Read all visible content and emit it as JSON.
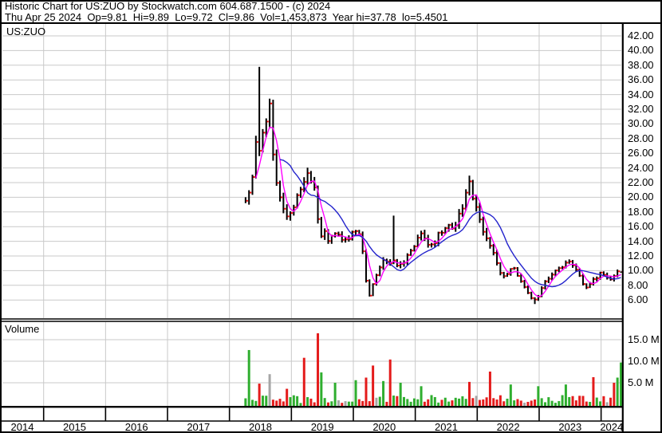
{
  "header": {
    "line1": "Historic Chart for US:ZUO by Stockwatch.com 604.687.1500 - (c) 2024",
    "line2": "Thu Apr 25 2024  Op=9.81  Hi=9.89  Lo=9.72  Cl=9.86  Vol=1,453,873  Year hi=37.78  lo=5.4501"
  },
  "price_pane": {
    "symbol_label": "US:ZUO"
  },
  "volume_pane": {
    "label": "Volume"
  },
  "chart_data": {
    "type": "candlestick",
    "title": "Historic Chart for US:ZUO",
    "symbol": "US:ZUO",
    "provider": "Stockwatch.com 604.687.1500 - (c) 2024",
    "last_quote": {
      "date": "Thu Apr 25 2024",
      "open": 9.81,
      "high": 9.89,
      "low": 9.72,
      "close": 9.86,
      "volume": "1,453,873",
      "year_high": 37.78,
      "year_low": 5.4501
    },
    "y_axis": {
      "min": 6,
      "max": 42,
      "step": 2,
      "labels": [
        "42.00",
        "40.00",
        "38.00",
        "36.00",
        "34.00",
        "32.00",
        "30.00",
        "28.00",
        "26.00",
        "24.00",
        "22.00",
        "20.00",
        "18.00",
        "16.00",
        "14.00",
        "12.00",
        "10.00",
        "8.00",
        "6.00"
      ]
    },
    "volume_axis": {
      "labels": [
        "15.0 M",
        "10.0 M",
        "5.0 M"
      ],
      "values": [
        15,
        10,
        5
      ],
      "unit": "millions of shares"
    },
    "x_axis": {
      "years": [
        "2014",
        "2015",
        "2016",
        "2017",
        "2018",
        "2019",
        "2020",
        "2021",
        "2022",
        "2023",
        "2024"
      ]
    },
    "grid": true,
    "colors": {
      "bar": "#000000",
      "close_tick": "#ff0000",
      "ma_short": "#ff00ff",
      "ma_long": "#2323cc",
      "vol_up": "#2fae2f",
      "vol_down": "#e41b1b",
      "vol_neutral": "#a6a6a6",
      "grid": "#c9c9c9",
      "frame": "#000000"
    },
    "moving_averages": [
      {
        "name": "short-ma",
        "period": 4,
        "color_key": "ma_short"
      },
      {
        "name": "long-ma",
        "period": 11,
        "color_key": "ma_long"
      }
    ],
    "bars": {
      "count": 110,
      "t_start": 2018.26,
      "t_end": 2024.32
    },
    "price_path_anchors": [
      [
        2018.28,
        19.5
      ],
      [
        2018.34,
        21.5
      ],
      [
        2018.41,
        24.0
      ],
      [
        2018.455,
        35.0
      ],
      [
        2018.48,
        26.5
      ],
      [
        2018.55,
        28.5
      ],
      [
        2018.61,
        30.5
      ],
      [
        2018.645,
        33.5
      ],
      [
        2018.7,
        25.5
      ],
      [
        2018.78,
        21.0
      ],
      [
        2018.85,
        18.5
      ],
      [
        2018.93,
        17.0
      ],
      [
        2019.0,
        17.8
      ],
      [
        2019.08,
        20.0
      ],
      [
        2019.18,
        22.0
      ],
      [
        2019.27,
        23.2
      ],
      [
        2019.35,
        21.5
      ],
      [
        2019.41,
        19.8
      ],
      [
        2019.44,
        14.6
      ],
      [
        2019.52,
        15.4
      ],
      [
        2019.6,
        13.9
      ],
      [
        2019.68,
        14.9
      ],
      [
        2019.76,
        15.2
      ],
      [
        2019.84,
        13.9
      ],
      [
        2019.92,
        14.2
      ],
      [
        2020.0,
        15.2
      ],
      [
        2020.1,
        15.0
      ],
      [
        2020.16,
        12.5
      ],
      [
        2020.22,
        7.2
      ],
      [
        2020.26,
        6.6
      ],
      [
        2020.33,
        8.4
      ],
      [
        2020.42,
        10.2
      ],
      [
        2020.5,
        11.8
      ],
      [
        2020.58,
        11.0
      ],
      [
        2020.64,
        10.2
      ],
      [
        2020.67,
        13.0
      ],
      [
        2020.71,
        10.4
      ],
      [
        2020.79,
        10.8
      ],
      [
        2020.87,
        12.0
      ],
      [
        2020.95,
        13.0
      ],
      [
        2021.03,
        14.4
      ],
      [
        2021.11,
        15.6
      ],
      [
        2021.19,
        13.9
      ],
      [
        2021.27,
        13.3
      ],
      [
        2021.36,
        14.7
      ],
      [
        2021.45,
        15.6
      ],
      [
        2021.54,
        16.1
      ],
      [
        2021.62,
        16.0
      ],
      [
        2021.7,
        17.3
      ],
      [
        2021.78,
        19.0
      ],
      [
        2021.855,
        22.3
      ],
      [
        2021.9,
        20.8
      ],
      [
        2021.97,
        18.9
      ],
      [
        2022.04,
        16.6
      ],
      [
        2022.12,
        14.6
      ],
      [
        2022.2,
        13.6
      ],
      [
        2022.28,
        12.1
      ],
      [
        2022.36,
        9.7
      ],
      [
        2022.44,
        9.1
      ],
      [
        2022.52,
        10.1
      ],
      [
        2022.6,
        10.4
      ],
      [
        2022.68,
        9.0
      ],
      [
        2022.76,
        7.7
      ],
      [
        2022.84,
        6.6
      ],
      [
        2022.92,
        5.9
      ],
      [
        2022.99,
        6.5
      ],
      [
        2023.07,
        8.3
      ],
      [
        2023.15,
        8.9
      ],
      [
        2023.24,
        9.7
      ],
      [
        2023.33,
        10.3
      ],
      [
        2023.42,
        11.0
      ],
      [
        2023.47,
        11.3
      ],
      [
        2023.55,
        10.6
      ],
      [
        2023.63,
        9.6
      ],
      [
        2023.7,
        8.3
      ],
      [
        2023.76,
        7.5
      ],
      [
        2023.84,
        8.3
      ],
      [
        2023.92,
        9.1
      ],
      [
        2024.0,
        9.6
      ],
      [
        2024.08,
        9.2
      ],
      [
        2024.16,
        8.9
      ],
      [
        2024.24,
        9.6
      ],
      [
        2024.32,
        9.86
      ]
    ],
    "key_bars": [
      {
        "t": 2018.455,
        "high": 37.78
      },
      {
        "t": 2020.67,
        "high": 17.5
      },
      {
        "t": 2022.92,
        "low": 5.4501
      },
      {
        "t": 2024.32,
        "open": 9.81,
        "high": 9.89,
        "low": 9.72,
        "close": 9.86
      }
    ],
    "volume_spikes": [
      [
        2018.29,
        12.6,
        "g"
      ],
      [
        2018.47,
        4.8,
        "r"
      ],
      [
        2018.65,
        7.0,
        "n"
      ],
      [
        2018.9,
        3.6,
        "r"
      ],
      [
        2019.21,
        10.8,
        "r"
      ],
      [
        2019.42,
        16.5,
        "r"
      ],
      [
        2019.5,
        7.4,
        "g"
      ],
      [
        2019.7,
        5.0,
        "g"
      ],
      [
        2020.05,
        5.6,
        "g"
      ],
      [
        2020.23,
        6.2,
        "r"
      ],
      [
        2020.31,
        9.0,
        "r"
      ],
      [
        2020.48,
        5.4,
        "g"
      ],
      [
        2020.62,
        10.4,
        "r"
      ],
      [
        2020.78,
        5.0,
        "g"
      ],
      [
        2021.1,
        4.2,
        "g"
      ],
      [
        2021.86,
        5.2,
        "r"
      ],
      [
        2022.18,
        7.6,
        "r"
      ],
      [
        2022.55,
        4.6,
        "g"
      ],
      [
        2023.0,
        4.2,
        "g"
      ],
      [
        2023.45,
        4.6,
        "g"
      ],
      [
        2023.85,
        6.3,
        "r"
      ],
      [
        2024.22,
        5.0,
        "r"
      ],
      [
        2024.28,
        6.2,
        "g"
      ],
      [
        2024.315,
        9.7,
        "g"
      ]
    ]
  }
}
